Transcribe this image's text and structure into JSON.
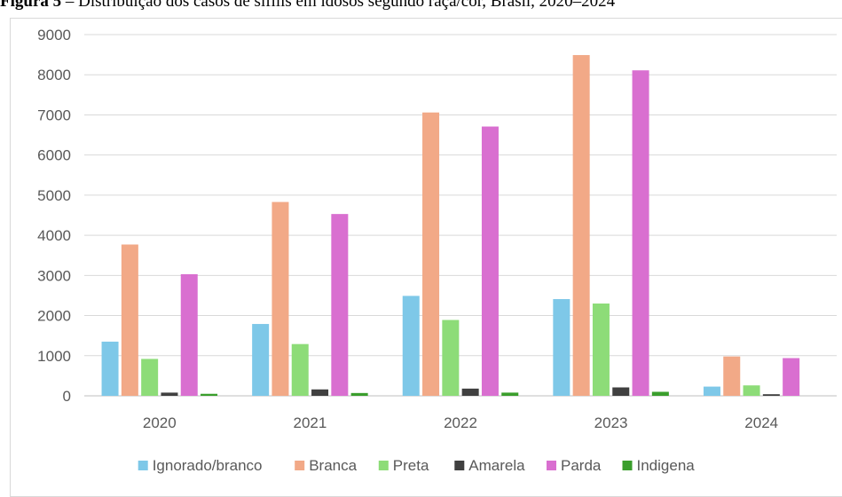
{
  "caption": {
    "prefix": "Figura 5",
    "text": " – Distribuição dos casos de sífilis em idosos segundo raça/cor, Brasil, 2020–2024"
  },
  "colors": {
    "Ignorado/branco": "#7ec8e8",
    "Branca": "#f2a987",
    "Preta": "#8ddc78",
    "Amarela": "#404040",
    "Parda": "#d96fd0",
    "Indigena": "#3a9e2c"
  },
  "chart_data": {
    "type": "bar",
    "title": "",
    "xlabel": "",
    "ylabel": "",
    "ylim": [
      0,
      9000
    ],
    "yticks": [
      0,
      1000,
      2000,
      3000,
      4000,
      5000,
      6000,
      7000,
      8000,
      9000
    ],
    "grid": true,
    "legend_position": "bottom",
    "categories": [
      "2020",
      "2021",
      "2022",
      "2023",
      "2024"
    ],
    "series": [
      {
        "name": "Ignorado/branco",
        "values": [
          1350,
          1790,
          2490,
          2410,
          230
        ]
      },
      {
        "name": "Branca",
        "values": [
          3770,
          4830,
          7060,
          8490,
          980
        ]
      },
      {
        "name": "Preta",
        "values": [
          920,
          1290,
          1890,
          2300,
          260
        ]
      },
      {
        "name": "Amarela",
        "values": [
          80,
          160,
          180,
          210,
          40
        ]
      },
      {
        "name": "Parda",
        "values": [
          3030,
          4530,
          6710,
          8110,
          940
        ]
      },
      {
        "name": "Indigena",
        "values": [
          50,
          70,
          80,
          100,
          0
        ]
      }
    ]
  }
}
